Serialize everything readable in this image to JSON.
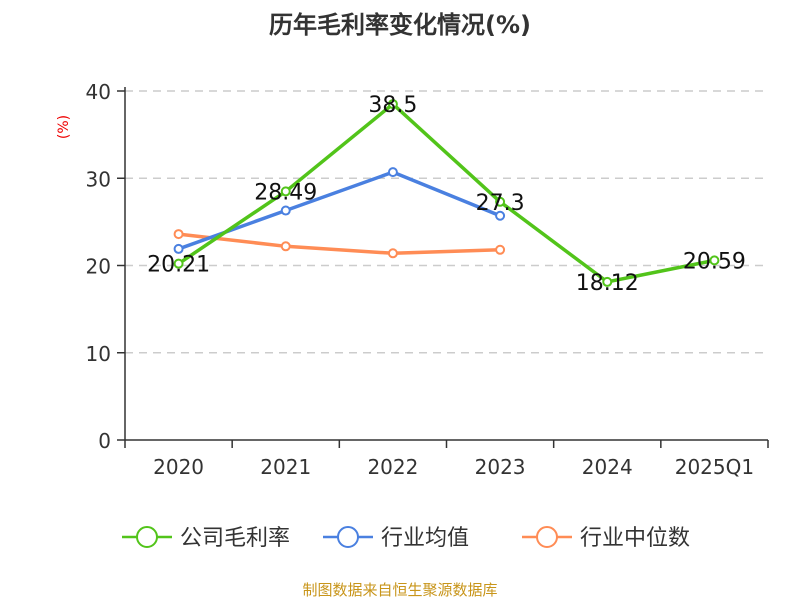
{
  "chart_data": {
    "type": "line",
    "title": "历年毛利率变化情况(%)",
    "ylabel": "(%)",
    "xlabel": "",
    "categories": [
      "2020",
      "2021",
      "2022",
      "2023",
      "2024",
      "2025Q1"
    ],
    "ylim": [
      0,
      40
    ],
    "yticks": [
      0,
      10,
      20,
      30,
      40
    ],
    "grid": true,
    "legend_position": "bottom",
    "series": [
      {
        "name": "公司毛利率",
        "color": "#52c41a",
        "values": [
          20.21,
          28.49,
          38.5,
          27.3,
          18.12,
          20.59
        ],
        "labels": [
          "20.21",
          "28.49",
          "38.5",
          "27.3",
          "18.12",
          "20.59"
        ]
      },
      {
        "name": "行业均值",
        "color": "#4a80e0",
        "values": [
          21.9,
          26.3,
          30.7,
          25.7,
          null,
          null
        ]
      },
      {
        "name": "行业中位数",
        "color": "#ff8c55",
        "values": [
          23.6,
          22.2,
          21.4,
          21.8,
          null,
          null
        ]
      }
    ]
  },
  "footer": {
    "source": "制图数据来自恒生聚源数据库",
    "color": "#c8951a"
  }
}
